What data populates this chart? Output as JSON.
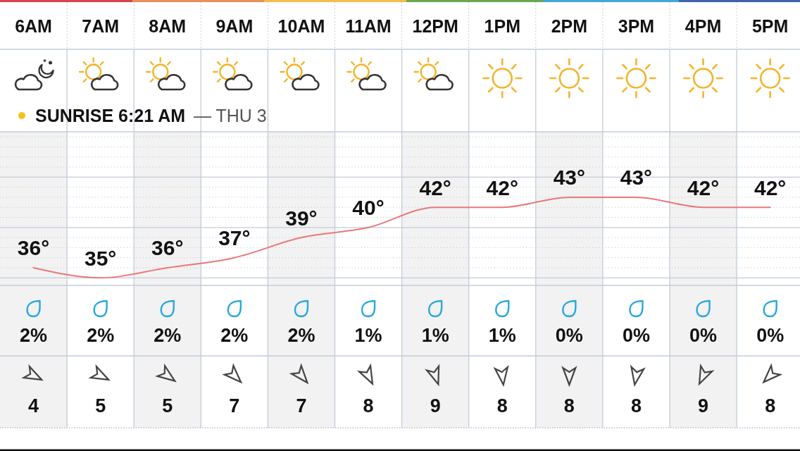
{
  "chart_data": [
    {
      "type": "line",
      "categories": [
        "6AM",
        "7AM",
        "8AM",
        "9AM",
        "10AM",
        "11AM",
        "12PM",
        "1PM",
        "2PM",
        "3PM",
        "4PM",
        "5PM"
      ],
      "values": [
        36,
        35,
        36,
        37,
        39,
        40,
        42,
        42,
        43,
        43,
        42,
        42
      ],
      "value_labels": [
        "36°",
        "35°",
        "36°",
        "37°",
        "39°",
        "40°",
        "42°",
        "42°",
        "43°",
        "43°",
        "42°",
        "42°"
      ],
      "color": "#e8787a",
      "ylim": [
        34.25,
        49.5
      ],
      "yticks": [
        {
          "value": 35,
          "label": null
        },
        {
          "value": 36,
          "label": null
        },
        {
          "value": 37,
          "label": null
        },
        {
          "value": 38,
          "label": null
        },
        {
          "value": 39,
          "label": null
        },
        {
          "value": 40,
          "label": null
        },
        {
          "value": 41,
          "label": null
        },
        {
          "value": 42,
          "label": null
        },
        {
          "value": 43,
          "label": null
        },
        {
          "value": 44,
          "label": null
        },
        {
          "value": 45,
          "label": null
        },
        {
          "value": 46,
          "label": null
        },
        {
          "value": 47,
          "label": null
        },
        {
          "value": 48,
          "label": null
        },
        {
          "value": 49,
          "label": null
        }
      ],
      "grid": true,
      "tick_labels": "x",
      "annotations": [
        "SUNRISE 6:21 AM",
        "— THU 3"
      ],
      "bands": [
        {
          "axis": "x",
          "from": "6AM",
          "to": "6AM",
          "color": "#f2f2f2"
        },
        {
          "axis": "x",
          "from": "8AM",
          "to": "8AM",
          "color": "#f2f2f2"
        },
        {
          "axis": "x",
          "from": "10AM",
          "to": "10AM",
          "color": "#f2f2f2"
        },
        {
          "axis": "x",
          "from": "12PM",
          "to": "12PM",
          "color": "#f2f2f2"
        },
        {
          "axis": "x",
          "from": "2PM",
          "to": "2PM",
          "color": "#f2f2f2"
        },
        {
          "axis": "x",
          "from": "4PM",
          "to": "4PM",
          "color": "#f2f2f2"
        }
      ]
    },
    {
      "type": "other",
      "values": [
        2,
        2,
        2,
        2,
        2,
        1,
        1,
        1,
        0,
        0,
        0,
        0
      ],
      "value_labels": [
        "2%",
        "2%",
        "2%",
        "2%",
        "2%",
        "1%",
        "1%",
        "1%",
        "0%",
        "0%",
        "0%",
        "0%"
      ]
    },
    {
      "type": "other",
      "values": [
        4,
        5,
        5,
        7,
        7,
        8,
        9,
        8,
        8,
        8,
        9,
        8
      ],
      "data_labels": true
    }
  ]
}
